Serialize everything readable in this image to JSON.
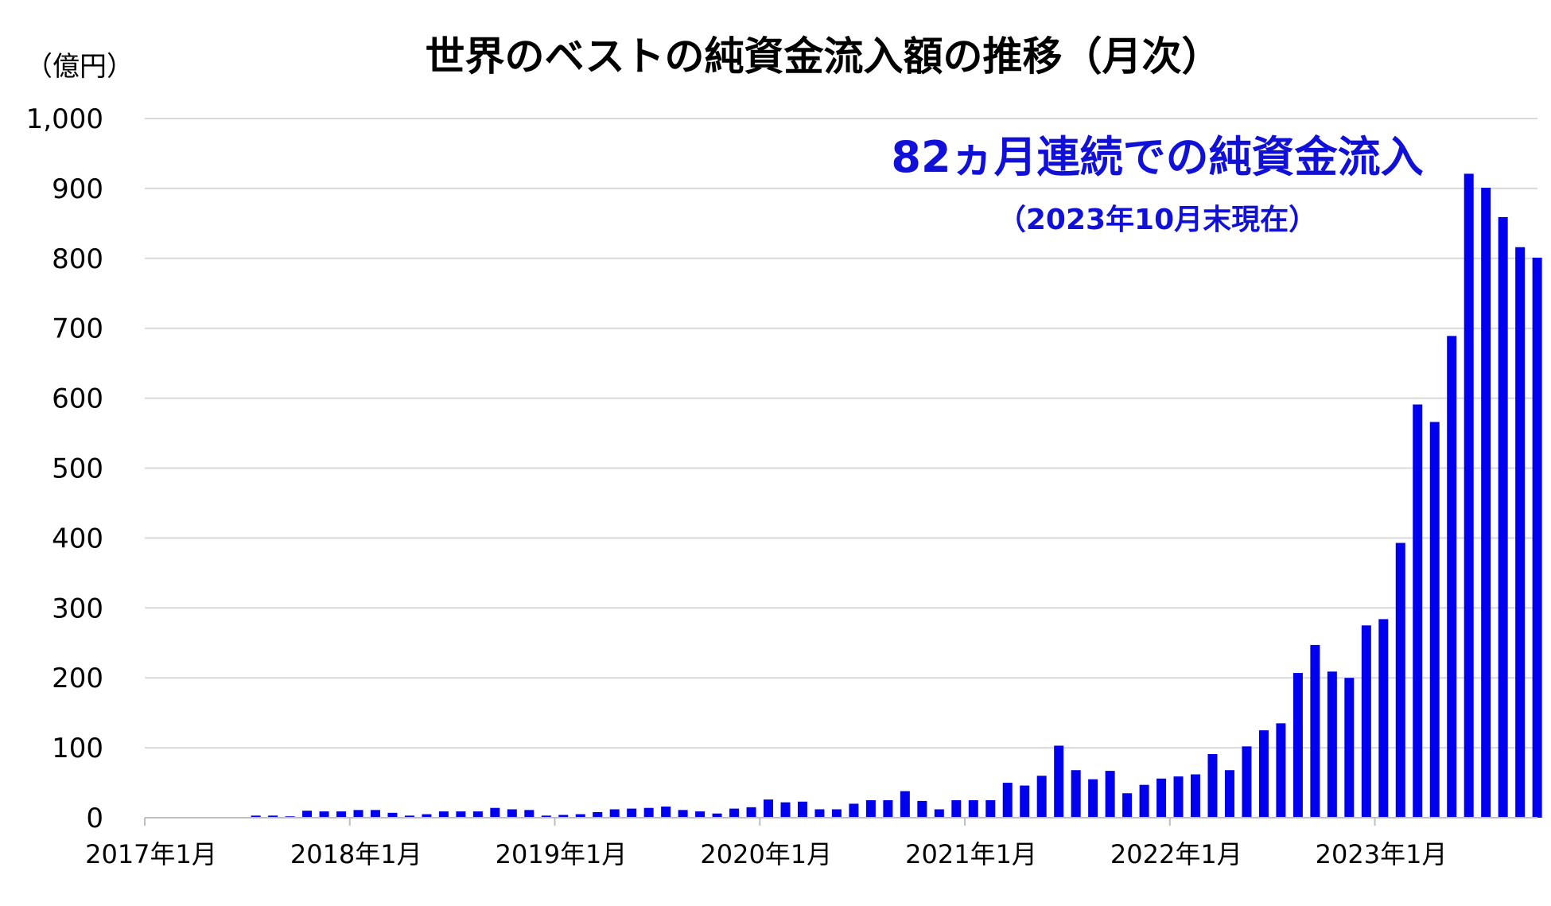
{
  "chart_data": {
    "type": "bar",
    "title": "世界のベストの純資金流入額の推移（月次）",
    "unit_label": "（億円）",
    "annotation_main": "82ヵ月連続での純資金流入",
    "annotation_sub": "（2023年10月末現在）",
    "ylim": [
      0,
      1000
    ],
    "yticks": [
      "0",
      "100",
      "200",
      "300",
      "400",
      "500",
      "600",
      "700",
      "800",
      "900",
      "1,000"
    ],
    "x_tick_labels": [
      "2017年1月",
      "2018年1月",
      "2019年1月",
      "2020年1月",
      "2021年1月",
      "2022年1月",
      "2023年1月"
    ],
    "grid": true,
    "bar_color": "#0000EE",
    "x": [
      "2017-01",
      "2017-02",
      "2017-03",
      "2017-04",
      "2017-05",
      "2017-06",
      "2017-07",
      "2017-08",
      "2017-09",
      "2017-10",
      "2017-11",
      "2017-12",
      "2018-01",
      "2018-02",
      "2018-03",
      "2018-04",
      "2018-05",
      "2018-06",
      "2018-07",
      "2018-08",
      "2018-09",
      "2018-10",
      "2018-11",
      "2018-12",
      "2019-01",
      "2019-02",
      "2019-03",
      "2019-04",
      "2019-05",
      "2019-06",
      "2019-07",
      "2019-08",
      "2019-09",
      "2019-10",
      "2019-11",
      "2019-12",
      "2020-01",
      "2020-02",
      "2020-03",
      "2020-04",
      "2020-05",
      "2020-06",
      "2020-07",
      "2020-08",
      "2020-09",
      "2020-10",
      "2020-11",
      "2020-12",
      "2021-01",
      "2021-02",
      "2021-03",
      "2021-04",
      "2021-05",
      "2021-06",
      "2021-07",
      "2021-08",
      "2021-09",
      "2021-10",
      "2021-11",
      "2021-12",
      "2022-01",
      "2022-02",
      "2022-03",
      "2022-04",
      "2022-05",
      "2022-06",
      "2022-07",
      "2022-08",
      "2022-09",
      "2022-10",
      "2022-11",
      "2022-12",
      "2023-01",
      "2023-02",
      "2023-03",
      "2023-04",
      "2023-05",
      "2023-06",
      "2023-07",
      "2023-08",
      "2023-09",
      "2023-10"
    ],
    "values": [
      0,
      0,
      0,
      0,
      0,
      0,
      3,
      3,
      2,
      10,
      9,
      9,
      11,
      11,
      7,
      3,
      5,
      9,
      9,
      9,
      14,
      12,
      11,
      3,
      4,
      5,
      8,
      12,
      13,
      14,
      16,
      11,
      9,
      6,
      13,
      15,
      26,
      22,
      23,
      12,
      12,
      20,
      25,
      25,
      38,
      24,
      12,
      25,
      25,
      25,
      50,
      46,
      60,
      103,
      68,
      55,
      67,
      35,
      47,
      56,
      59,
      62,
      91,
      68,
      102,
      125,
      135,
      207,
      247,
      209,
      200,
      275,
      284,
      393,
      591,
      566,
      689,
      921,
      901,
      859,
      816,
      801
    ]
  }
}
